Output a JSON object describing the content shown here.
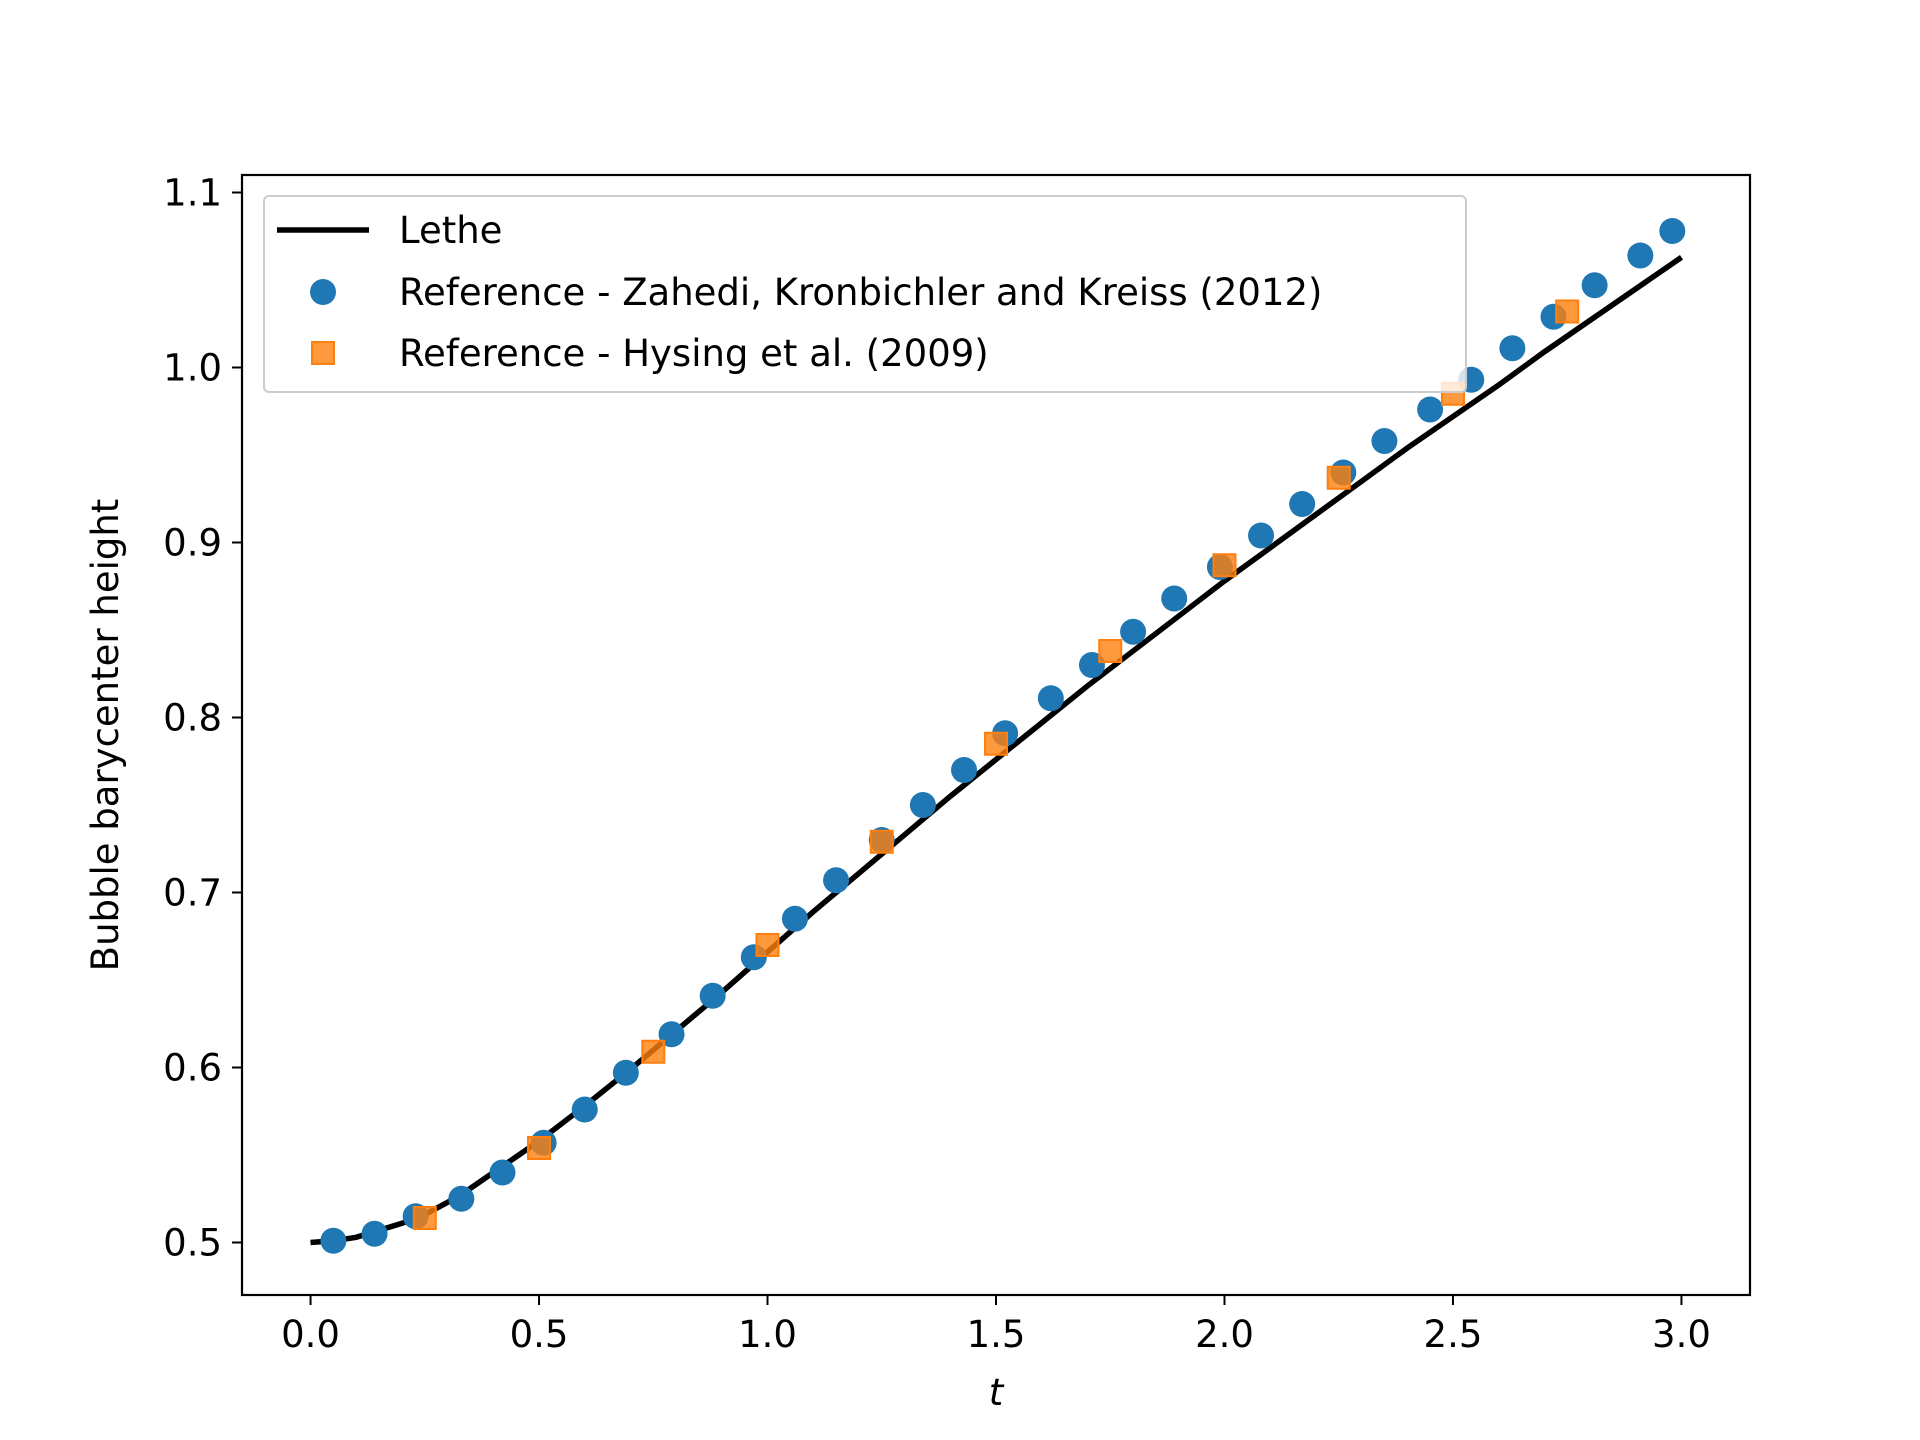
{
  "chart_data": {
    "type": "line",
    "xlabel": "t",
    "ylabel": "Bubble barycenter height",
    "xlim": [
      -0.15,
      3.15
    ],
    "ylim": [
      0.47,
      1.11
    ],
    "xticks": [
      "0.0",
      "0.5",
      "1.0",
      "1.5",
      "2.0",
      "2.5",
      "3.0"
    ],
    "yticks": [
      "0.5",
      "0.6",
      "0.7",
      "0.8",
      "0.9",
      "1.0",
      "1.1"
    ],
    "grid": false,
    "legend_position": "top-left",
    "series": [
      {
        "name": "Lethe",
        "kind": "line",
        "color": "#000000",
        "x": [
          0.0,
          0.05,
          0.1,
          0.15,
          0.2,
          0.25,
          0.3,
          0.35,
          0.4,
          0.45,
          0.5,
          0.6,
          0.7,
          0.8,
          0.9,
          1.0,
          1.1,
          1.2,
          1.3,
          1.4,
          1.5,
          1.6,
          1.7,
          1.8,
          1.9,
          2.0,
          2.1,
          2.2,
          2.3,
          2.4,
          2.5,
          2.6,
          2.7,
          2.8,
          2.9,
          3.0
        ],
        "y": [
          0.5,
          0.501,
          0.503,
          0.507,
          0.511,
          0.516,
          0.523,
          0.531,
          0.54,
          0.549,
          0.558,
          0.578,
          0.599,
          0.621,
          0.643,
          0.666,
          0.689,
          0.711,
          0.733,
          0.755,
          0.776,
          0.797,
          0.818,
          0.838,
          0.858,
          0.878,
          0.897,
          0.916,
          0.935,
          0.954,
          0.972,
          0.99,
          1.009,
          1.027,
          1.045,
          1.063
        ]
      },
      {
        "name": "Reference - Zahedi, Kronbichler and Kreiss (2012)",
        "kind": "scatter",
        "marker": "circle",
        "color": "#1f77b4",
        "x": [
          0.05,
          0.14,
          0.23,
          0.33,
          0.42,
          0.51,
          0.6,
          0.69,
          0.79,
          0.88,
          0.97,
          1.06,
          1.15,
          1.25,
          1.34,
          1.43,
          1.52,
          1.62,
          1.71,
          1.8,
          1.89,
          1.99,
          2.08,
          2.17,
          2.26,
          2.35,
          2.45,
          2.54,
          2.63,
          2.72,
          2.81,
          2.91,
          2.98
        ],
        "y": [
          0.501,
          0.505,
          0.515,
          0.525,
          0.54,
          0.557,
          0.576,
          0.597,
          0.619,
          0.641,
          0.663,
          0.685,
          0.707,
          0.73,
          0.75,
          0.77,
          0.791,
          0.811,
          0.83,
          0.849,
          0.868,
          0.886,
          0.904,
          0.922,
          0.94,
          0.958,
          0.976,
          0.993,
          1.011,
          1.029,
          1.047,
          1.064,
          1.078
        ]
      },
      {
        "name": "Reference - Hysing et al. (2009)",
        "kind": "scatter",
        "marker": "square",
        "color": "#ff7f0e",
        "x": [
          0.25,
          0.5,
          0.75,
          1.0,
          1.25,
          1.5,
          1.75,
          2.0,
          2.25,
          2.5,
          2.75
        ],
        "y": [
          0.514,
          0.554,
          0.609,
          0.67,
          0.729,
          0.785,
          0.838,
          0.887,
          0.937,
          0.985,
          1.032
        ]
      }
    ]
  }
}
